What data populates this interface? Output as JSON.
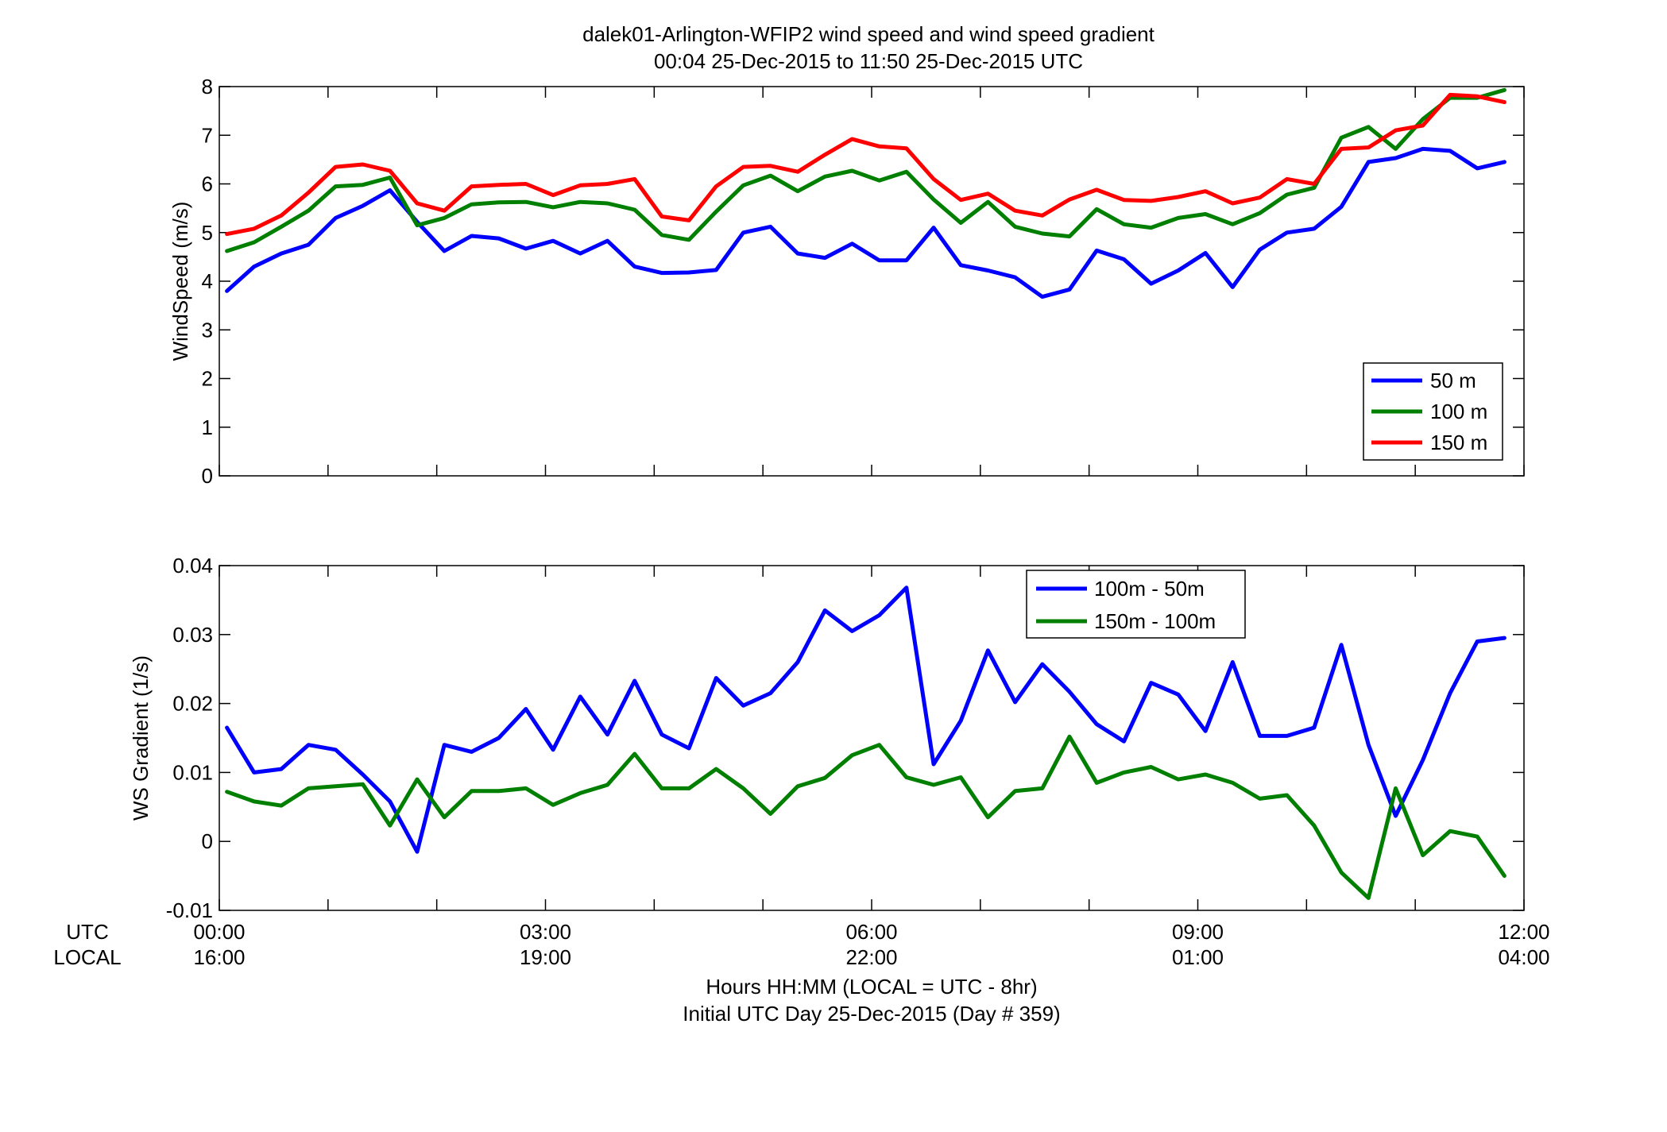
{
  "figure": {
    "title_line1": "dalek01-Arlington-WFIP2  wind speed and wind speed gradient",
    "title_line2": "00:04 25-Dec-2015 to 11:50 25-Dec-2015  UTC",
    "row_label_utc": "UTC",
    "row_label_local": "LOCAL",
    "xlabel_line1": "Hours HH:MM  (LOCAL = UTC - 8hr)",
    "xlabel_line2": "Initial UTC Day 25-Dec-2015 (Day # 359)",
    "utc_ticks": [
      "00:00",
      "03:00",
      "06:00",
      "09:00",
      "12:00"
    ],
    "local_ticks": [
      "16:00",
      "19:00",
      "22:00",
      "01:00",
      "04:00"
    ]
  },
  "chart_data": [
    {
      "type": "line",
      "ylabel": "WindSpeed (m/s)",
      "xlim": [
        0,
        12
      ],
      "ylim": [
        0,
        8
      ],
      "yticks": [
        0,
        1,
        2,
        3,
        4,
        5,
        6,
        7,
        8
      ],
      "ytick_labels": [
        "0",
        "1",
        "2",
        "3",
        "4",
        "5",
        "6",
        "7",
        "8"
      ],
      "legend_position": "bottom-right",
      "x": [
        0.07,
        0.32,
        0.57,
        0.82,
        1.07,
        1.32,
        1.57,
        1.82,
        2.07,
        2.32,
        2.57,
        2.82,
        3.07,
        3.32,
        3.57,
        3.82,
        4.07,
        4.32,
        4.57,
        4.82,
        5.07,
        5.32,
        5.57,
        5.82,
        6.07,
        6.32,
        6.57,
        6.82,
        7.07,
        7.32,
        7.57,
        7.82,
        8.07,
        8.32,
        8.57,
        8.82,
        9.07,
        9.32,
        9.57,
        9.82,
        10.07,
        10.32,
        10.57,
        10.82,
        11.07,
        11.32,
        11.57,
        11.82
      ],
      "series": [
        {
          "name": "50 m",
          "color": "#0000ff",
          "values": [
            3.8,
            4.3,
            4.57,
            4.75,
            5.3,
            5.55,
            5.87,
            5.22,
            4.62,
            4.93,
            4.88,
            4.67,
            4.83,
            4.57,
            4.83,
            4.3,
            4.17,
            4.18,
            4.23,
            5.0,
            5.12,
            4.57,
            4.48,
            4.77,
            4.43,
            4.43,
            5.1,
            4.33,
            4.22,
            4.08,
            3.68,
            3.83,
            4.63,
            4.45,
            3.95,
            4.22,
            4.58,
            3.88,
            4.65,
            5.0,
            5.08,
            5.53,
            6.45,
            6.53,
            6.72,
            6.68,
            6.32,
            6.45
          ]
        },
        {
          "name": "100 m",
          "color": "#007f00",
          "values": [
            4.62,
            4.8,
            5.12,
            5.45,
            5.95,
            5.98,
            6.13,
            5.15,
            5.3,
            5.58,
            5.62,
            5.63,
            5.52,
            5.63,
            5.6,
            5.47,
            4.95,
            4.85,
            5.43,
            5.97,
            6.17,
            5.85,
            6.15,
            6.27,
            6.07,
            6.25,
            5.68,
            5.2,
            5.63,
            5.12,
            4.98,
            4.92,
            5.48,
            5.17,
            5.1,
            5.3,
            5.38,
            5.17,
            5.4,
            5.78,
            5.92,
            6.95,
            7.17,
            6.72,
            7.33,
            7.77,
            7.77,
            7.93
          ]
        },
        {
          "name": "150 m",
          "color": "#ff0000",
          "values": [
            4.97,
            5.08,
            5.35,
            5.82,
            6.35,
            6.4,
            6.27,
            5.6,
            5.45,
            5.95,
            5.98,
            6.0,
            5.77,
            5.97,
            6.0,
            6.1,
            5.33,
            5.25,
            5.95,
            6.35,
            6.37,
            6.25,
            6.6,
            6.92,
            6.77,
            6.73,
            6.1,
            5.67,
            5.8,
            5.45,
            5.35,
            5.68,
            5.88,
            5.67,
            5.65,
            5.73,
            5.85,
            5.6,
            5.72,
            6.1,
            6.0,
            6.72,
            6.75,
            7.1,
            7.2,
            7.83,
            7.8,
            7.68
          ]
        }
      ]
    },
    {
      "type": "line",
      "ylabel": "WS Gradient (1/s)",
      "xlim": [
        0,
        12
      ],
      "ylim": [
        -0.01,
        0.04
      ],
      "yticks": [
        -0.01,
        0,
        0.01,
        0.02,
        0.03,
        0.04
      ],
      "ytick_labels": [
        "-0.01",
        "0",
        "0.01",
        "0.02",
        "0.03",
        "0.04"
      ],
      "legend_position": "top-center",
      "x": [
        0.07,
        0.32,
        0.57,
        0.82,
        1.07,
        1.32,
        1.57,
        1.82,
        2.07,
        2.32,
        2.57,
        2.82,
        3.07,
        3.32,
        3.57,
        3.82,
        4.07,
        4.32,
        4.57,
        4.82,
        5.07,
        5.32,
        5.57,
        5.82,
        6.07,
        6.32,
        6.57,
        6.82,
        7.07,
        7.32,
        7.57,
        7.82,
        8.07,
        8.32,
        8.57,
        8.82,
        9.07,
        9.32,
        9.57,
        9.82,
        10.07,
        10.32,
        10.57,
        10.82,
        11.07,
        11.32,
        11.57,
        11.82
      ],
      "series": [
        {
          "name": "100m - 50m",
          "color": "#0000ff",
          "values": [
            0.0165,
            0.01,
            0.0105,
            0.014,
            0.0133,
            0.0097,
            0.0058,
            -0.0015,
            0.014,
            0.013,
            0.015,
            0.0192,
            0.0133,
            0.021,
            0.0155,
            0.0233,
            0.0155,
            0.0135,
            0.0237,
            0.0197,
            0.0215,
            0.026,
            0.0335,
            0.0305,
            0.0328,
            0.0368,
            0.0112,
            0.0175,
            0.0277,
            0.0202,
            0.0257,
            0.0217,
            0.017,
            0.0145,
            0.023,
            0.0213,
            0.016,
            0.026,
            0.0153,
            0.0153,
            0.0165,
            0.0285,
            0.014,
            0.0037,
            0.0118,
            0.0215,
            0.029,
            0.0295
          ]
        },
        {
          "name": "150m - 100m",
          "color": "#007f00",
          "values": [
            0.0072,
            0.0058,
            0.0052,
            0.0077,
            0.008,
            0.0083,
            0.0023,
            0.009,
            0.0035,
            0.0073,
            0.0073,
            0.0077,
            0.0053,
            0.007,
            0.0082,
            0.0127,
            0.0077,
            0.0077,
            0.0105,
            0.0077,
            0.004,
            0.008,
            0.0092,
            0.0125,
            0.014,
            0.0093,
            0.0082,
            0.0093,
            0.0035,
            0.0073,
            0.0077,
            0.0152,
            0.0085,
            0.01,
            0.0108,
            0.009,
            0.0097,
            0.0085,
            0.0062,
            0.0067,
            0.0023,
            -0.0045,
            -0.0082,
            0.0077,
            -0.002,
            0.0015,
            0.0007,
            -0.005
          ]
        }
      ]
    }
  ]
}
